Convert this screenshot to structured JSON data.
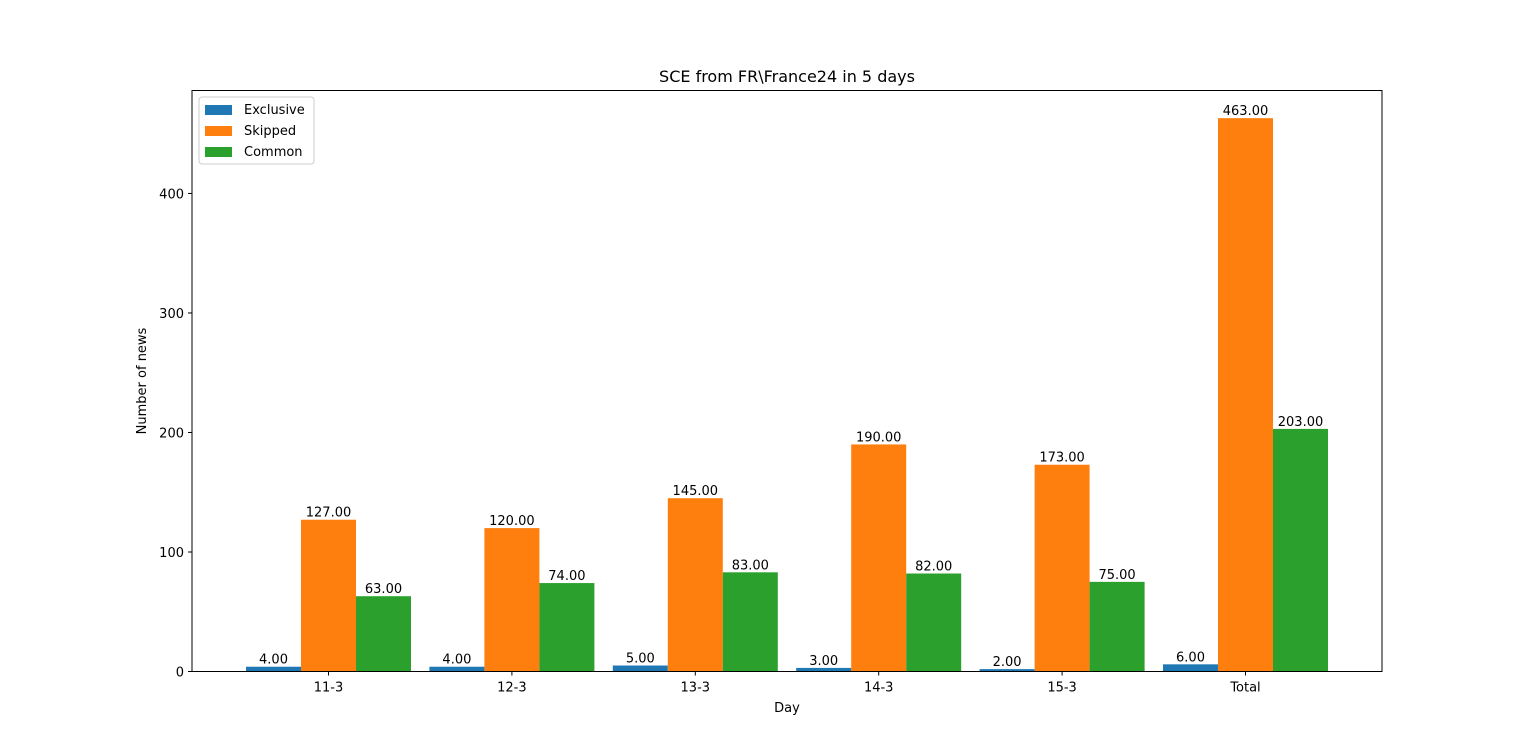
{
  "chart_data": {
    "type": "bar",
    "title": "SCE from FR\\France24 in 5 days",
    "xlabel": "Day",
    "ylabel": "Number of news",
    "categories": [
      "11-3",
      "12-3",
      "13-3",
      "14-3",
      "15-3",
      "Total"
    ],
    "series": [
      {
        "name": "Exclusive",
        "color": "#1f77b4",
        "values": [
          4,
          4,
          5,
          3,
          2,
          6
        ],
        "labels": [
          "4.00",
          "4.00",
          "5.00",
          "3.00",
          "2.00",
          "6.00"
        ]
      },
      {
        "name": "Skipped",
        "color": "#ff7f0e",
        "values": [
          127,
          120,
          145,
          190,
          173,
          463
        ],
        "labels": [
          "127.00",
          "120.00",
          "145.00",
          "190.00",
          "173.00",
          "463.00"
        ]
      },
      {
        "name": "Common",
        "color": "#2ca02c",
        "values": [
          63,
          74,
          83,
          82,
          75,
          203
        ],
        "labels": [
          "63.00",
          "74.00",
          "83.00",
          "82.00",
          "75.00",
          "203.00"
        ]
      }
    ],
    "yticks": [
      0,
      100,
      200,
      300,
      400
    ],
    "ylim": [
      0,
      486.15
    ],
    "grid": false,
    "legend_position": "upper left"
  }
}
